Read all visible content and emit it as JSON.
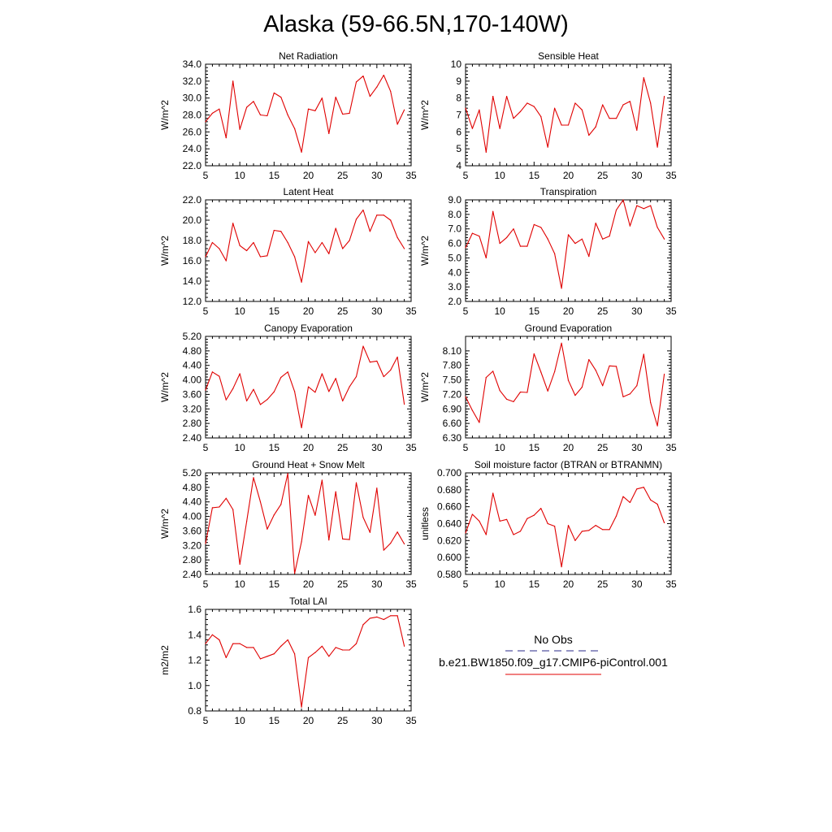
{
  "title": "Alaska (59-66.5N,170-140W)",
  "colors": {
    "model_line": "#e00000",
    "obs_line": "#2a2a8a",
    "axis": "#000000"
  },
  "legend": {
    "obs_label": "No Obs",
    "model_label": "b.e21.BW1850.f09_g17.CMIP6-piControl.001"
  },
  "x_ticks": [
    "5",
    "10",
    "15",
    "20",
    "25",
    "30",
    "35"
  ],
  "chart_data": [
    {
      "type": "line",
      "title": "Net Radiation",
      "ylabel": "W/m^2",
      "xlim": [
        5,
        35
      ],
      "ylim": [
        22.0,
        34.0
      ],
      "yticks": [
        "22.0",
        "24.0",
        "26.0",
        "28.0",
        "30.0",
        "32.0",
        "34.0"
      ],
      "x": [
        5,
        6,
        7,
        8,
        9,
        10,
        11,
        12,
        13,
        14,
        15,
        16,
        17,
        18,
        19,
        20,
        21,
        22,
        23,
        24,
        25,
        26,
        27,
        28,
        29,
        30,
        31,
        32,
        33,
        34
      ],
      "series": [
        {
          "values": [
            27.2,
            28.2,
            28.7,
            25.3,
            32.0,
            26.3,
            28.9,
            29.6,
            28.0,
            27.9,
            30.6,
            30.1,
            28.0,
            26.4,
            23.6,
            28.7,
            28.5,
            30.0,
            25.8,
            30.1,
            28.1,
            28.2,
            31.9,
            32.6,
            30.2,
            31.3,
            32.7,
            30.8,
            26.9,
            28.6
          ]
        }
      ]
    },
    {
      "type": "line",
      "title": "Sensible Heat",
      "ylabel": "W/m^2",
      "xlim": [
        5,
        35
      ],
      "ylim": [
        4,
        10
      ],
      "yticks": [
        "4",
        "5",
        "6",
        "7",
        "8",
        "9",
        "10"
      ],
      "x": [
        5,
        6,
        7,
        8,
        9,
        10,
        11,
        12,
        13,
        14,
        15,
        16,
        17,
        18,
        19,
        20,
        21,
        22,
        23,
        24,
        25,
        26,
        27,
        28,
        29,
        30,
        31,
        32,
        33,
        34
      ],
      "series": [
        {
          "values": [
            7.4,
            6.2,
            7.3,
            4.8,
            8.1,
            6.2,
            8.1,
            6.8,
            7.2,
            7.7,
            7.5,
            6.9,
            5.1,
            7.4,
            6.4,
            6.4,
            7.7,
            7.3,
            5.8,
            6.3,
            7.6,
            6.8,
            6.8,
            7.6,
            7.8,
            6.1,
            9.2,
            7.7,
            5.1,
            8.1
          ]
        }
      ]
    },
    {
      "type": "line",
      "title": "Latent Heat",
      "ylabel": "W/m^2",
      "xlim": [
        5,
        35
      ],
      "ylim": [
        12.0,
        22.0
      ],
      "yticks": [
        "12.0",
        "14.0",
        "16.0",
        "18.0",
        "20.0",
        "22.0"
      ],
      "x": [
        5,
        6,
        7,
        8,
        9,
        10,
        11,
        12,
        13,
        14,
        15,
        16,
        17,
        18,
        19,
        20,
        21,
        22,
        23,
        24,
        25,
        26,
        27,
        28,
        29,
        30,
        31,
        32,
        33,
        34
      ],
      "series": [
        {
          "values": [
            16.4,
            17.8,
            17.2,
            16.0,
            19.7,
            17.5,
            17.0,
            17.8,
            16.4,
            16.5,
            19.0,
            18.9,
            17.8,
            16.4,
            13.9,
            17.9,
            16.8,
            17.8,
            16.7,
            19.2,
            17.2,
            18.0,
            20.1,
            21.0,
            18.9,
            20.5,
            20.5,
            20.0,
            18.3,
            17.2
          ]
        }
      ]
    },
    {
      "type": "line",
      "title": "Transpiration",
      "ylabel": "W/m^2",
      "xlim": [
        5,
        35
      ],
      "ylim": [
        2.0,
        9.0
      ],
      "yticks": [
        "2.0",
        "3.0",
        "4.0",
        "5.0",
        "6.0",
        "7.0",
        "8.0",
        "9.0"
      ],
      "x": [
        5,
        6,
        7,
        8,
        9,
        10,
        11,
        12,
        13,
        14,
        15,
        16,
        17,
        18,
        19,
        20,
        21,
        22,
        23,
        24,
        25,
        26,
        27,
        28,
        29,
        30,
        31,
        32,
        33,
        34
      ],
      "series": [
        {
          "values": [
            5.7,
            6.7,
            6.5,
            5.0,
            8.2,
            6.0,
            6.4,
            7.0,
            5.8,
            5.8,
            7.3,
            7.1,
            6.3,
            5.3,
            2.9,
            6.6,
            6.0,
            6.3,
            5.1,
            7.4,
            6.3,
            6.5,
            8.3,
            9.0,
            7.2,
            8.6,
            8.4,
            8.6,
            7.1,
            6.3
          ]
        }
      ]
    },
    {
      "type": "line",
      "title": "Canopy Evaporation",
      "ylabel": "W/m^2",
      "xlim": [
        5,
        35
      ],
      "ylim": [
        2.4,
        5.2
      ],
      "yticks": [
        "2.40",
        "2.80",
        "3.20",
        "3.60",
        "4.00",
        "4.40",
        "4.80",
        "5.20"
      ],
      "x": [
        5,
        6,
        7,
        8,
        9,
        10,
        11,
        12,
        13,
        14,
        15,
        16,
        17,
        18,
        19,
        20,
        21,
        22,
        23,
        24,
        25,
        26,
        27,
        28,
        29,
        30,
        31,
        32,
        33,
        34
      ],
      "series": [
        {
          "values": [
            3.72,
            4.22,
            4.1,
            3.45,
            3.76,
            4.17,
            3.42,
            3.74,
            3.32,
            3.46,
            3.67,
            4.07,
            4.22,
            3.68,
            2.68,
            3.81,
            3.66,
            4.17,
            3.68,
            4.04,
            3.42,
            3.81,
            4.09,
            4.93,
            4.49,
            4.52,
            4.09,
            4.27,
            4.63,
            3.33
          ]
        }
      ]
    },
    {
      "type": "line",
      "title": "Ground Evaporation",
      "ylabel": "W/m^2",
      "xlim": [
        5,
        35
      ],
      "ylim": [
        6.3,
        8.4
      ],
      "yticks": [
        "6.30",
        "6.60",
        "6.90",
        "7.20",
        "7.50",
        "7.80",
        "8.10"
      ],
      "x": [
        5,
        6,
        7,
        8,
        9,
        10,
        11,
        12,
        13,
        14,
        15,
        16,
        17,
        18,
        19,
        20,
        21,
        22,
        23,
        24,
        25,
        26,
        27,
        28,
        29,
        30,
        31,
        32,
        33,
        34
      ],
      "series": [
        {
          "values": [
            7.15,
            6.87,
            6.62,
            7.55,
            7.68,
            7.28,
            7.1,
            7.05,
            7.25,
            7.24,
            8.04,
            7.66,
            7.27,
            7.67,
            8.26,
            7.49,
            7.18,
            7.35,
            7.92,
            7.7,
            7.38,
            7.79,
            7.78,
            7.15,
            7.21,
            7.38,
            8.03,
            7.03,
            6.55,
            7.62
          ]
        }
      ]
    },
    {
      "type": "line",
      "title": "Ground Heat + Snow Melt",
      "ylabel": "W/m^2",
      "xlim": [
        5,
        35
      ],
      "ylim": [
        2.4,
        5.2
      ],
      "yticks": [
        "2.40",
        "2.80",
        "3.20",
        "3.60",
        "4.00",
        "4.40",
        "4.80",
        "5.20"
      ],
      "x": [
        5,
        6,
        7,
        8,
        9,
        10,
        11,
        12,
        13,
        14,
        15,
        16,
        17,
        18,
        19,
        20,
        21,
        22,
        23,
        24,
        25,
        26,
        27,
        28,
        29,
        30,
        31,
        32,
        33,
        34
      ],
      "series": [
        {
          "values": [
            3.25,
            4.24,
            4.26,
            4.5,
            4.19,
            2.68,
            3.86,
            5.07,
            4.4,
            3.65,
            4.04,
            4.33,
            5.18,
            2.43,
            3.3,
            4.58,
            4.03,
            5.0,
            3.35,
            4.68,
            3.38,
            3.36,
            4.93,
            3.97,
            3.56,
            4.78,
            3.07,
            3.26,
            3.57,
            3.24
          ]
        }
      ]
    },
    {
      "type": "line",
      "title": "Soil moisture factor (BTRAN or BTRANMN)",
      "ylabel": "unitless",
      "xlim": [
        5,
        35
      ],
      "ylim": [
        0.58,
        0.7
      ],
      "yticks": [
        "0.580",
        "0.600",
        "0.620",
        "0.640",
        "0.660",
        "0.680",
        "0.700"
      ],
      "x": [
        5,
        6,
        7,
        8,
        9,
        10,
        11,
        12,
        13,
        14,
        15,
        16,
        17,
        18,
        19,
        20,
        21,
        22,
        23,
        24,
        25,
        26,
        27,
        28,
        29,
        30,
        31,
        32,
        33,
        34
      ],
      "series": [
        {
          "values": [
            0.629,
            0.651,
            0.643,
            0.627,
            0.676,
            0.643,
            0.645,
            0.627,
            0.631,
            0.646,
            0.65,
            0.658,
            0.64,
            0.637,
            0.589,
            0.638,
            0.62,
            0.631,
            0.632,
            0.638,
            0.633,
            0.633,
            0.649,
            0.672,
            0.665,
            0.681,
            0.683,
            0.668,
            0.663,
            0.641
          ]
        }
      ]
    },
    {
      "type": "line",
      "title": "Total LAI",
      "ylabel": "m2/m2",
      "xlim": [
        5,
        35
      ],
      "ylim": [
        0.8,
        1.6
      ],
      "yticks": [
        "0.8",
        "1.0",
        "1.2",
        "1.4",
        "1.6"
      ],
      "x": [
        5,
        6,
        7,
        8,
        9,
        10,
        11,
        12,
        13,
        14,
        15,
        16,
        17,
        18,
        19,
        20,
        21,
        22,
        23,
        24,
        25,
        26,
        27,
        28,
        29,
        30,
        31,
        32,
        33,
        34
      ],
      "series": [
        {
          "values": [
            1.33,
            1.4,
            1.36,
            1.22,
            1.33,
            1.33,
            1.3,
            1.3,
            1.21,
            1.23,
            1.25,
            1.31,
            1.36,
            1.25,
            0.83,
            1.22,
            1.26,
            1.31,
            1.23,
            1.3,
            1.28,
            1.28,
            1.33,
            1.48,
            1.53,
            1.54,
            1.52,
            1.55,
            1.55,
            1.31
          ]
        }
      ]
    }
  ]
}
